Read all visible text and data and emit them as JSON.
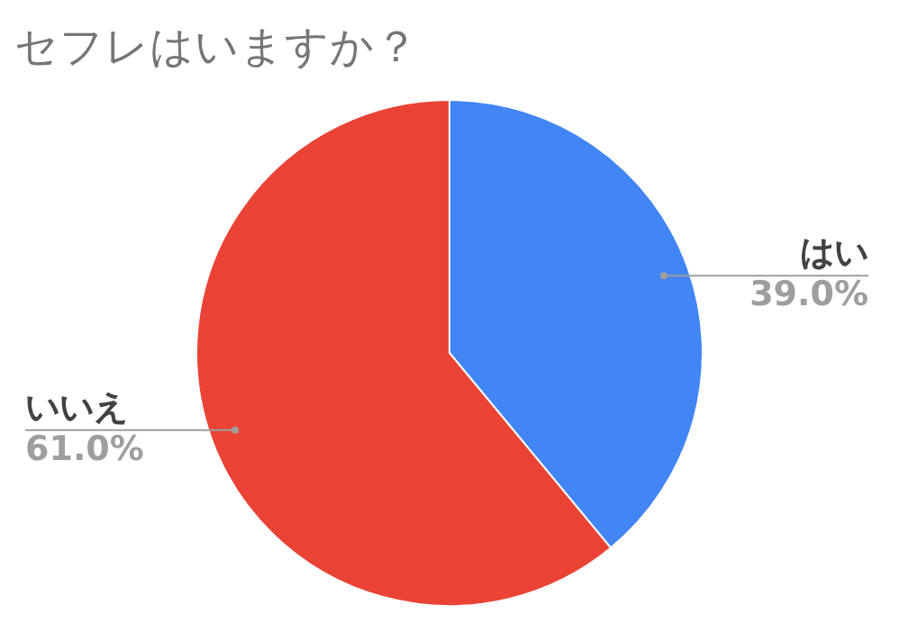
{
  "chart_data": {
    "type": "pie",
    "title": "セフレはいますか？",
    "categories": [
      "はい",
      "いいえ"
    ],
    "values": [
      39.0,
      61.0
    ],
    "colors": [
      "#4285f4",
      "#ea4335"
    ],
    "value_labels": [
      "39.0%",
      "61.0%"
    ]
  }
}
